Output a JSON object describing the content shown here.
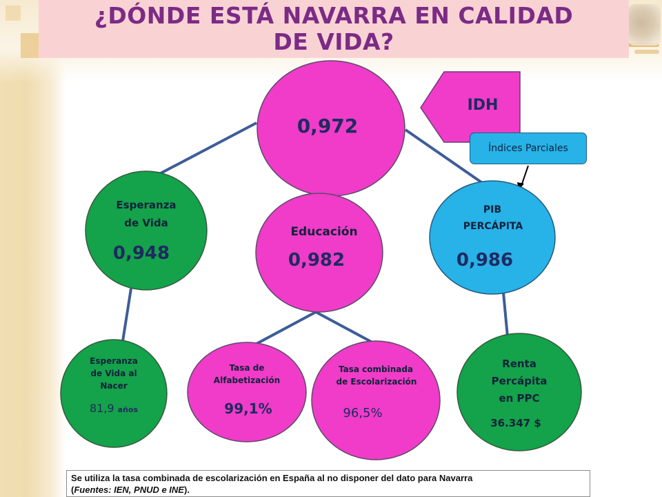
{
  "title": {
    "line1": "¿DÓNDE ESTÁ NAVARRA EN CALIDAD",
    "line2": "DE VIDA?"
  },
  "idh_arrow": {
    "label": "IDH"
  },
  "callout": {
    "label": "Índices Parciales"
  },
  "nodes": {
    "idh": {
      "value": "0,972"
    },
    "life_expectancy": {
      "line1": "Esperanza",
      "line2": "de Vida",
      "value": "0,948"
    },
    "education": {
      "label": "Educación",
      "value": "0,982"
    },
    "gdp": {
      "line1": "PIB",
      "line2": "PERCÁPITA",
      "value": "0,986"
    },
    "life_at_birth": {
      "line1": "Esperanza",
      "line2": "de Vida al",
      "line3": "Nacer",
      "value": "81,9",
      "unit": "años"
    },
    "literacy": {
      "line1": "Tasa de",
      "line2": "Alfabetización",
      "value": "99,1%"
    },
    "enrollment": {
      "line1": "Tasa combinada",
      "line2": "de Escolarización",
      "value": "96,5%"
    },
    "income": {
      "line1": "Renta",
      "line2": "Percápita",
      "line3": "en PPC",
      "value": "36.347 $"
    }
  },
  "footnote": {
    "text": "Se utiliza la tasa combinada de escolarización en España al no disponer del dato para Navarra",
    "open_paren": "(",
    "sources": "Fuentes: IEN, PNUD e INE",
    "close_paren": ")."
  },
  "colors": {
    "magenta": "#f03cc8",
    "green": "#14a24a",
    "blue": "#27b2e8",
    "connector": "#3d5d98",
    "title_text": "#7b2b86",
    "title_bg": "#f9d3d3"
  }
}
